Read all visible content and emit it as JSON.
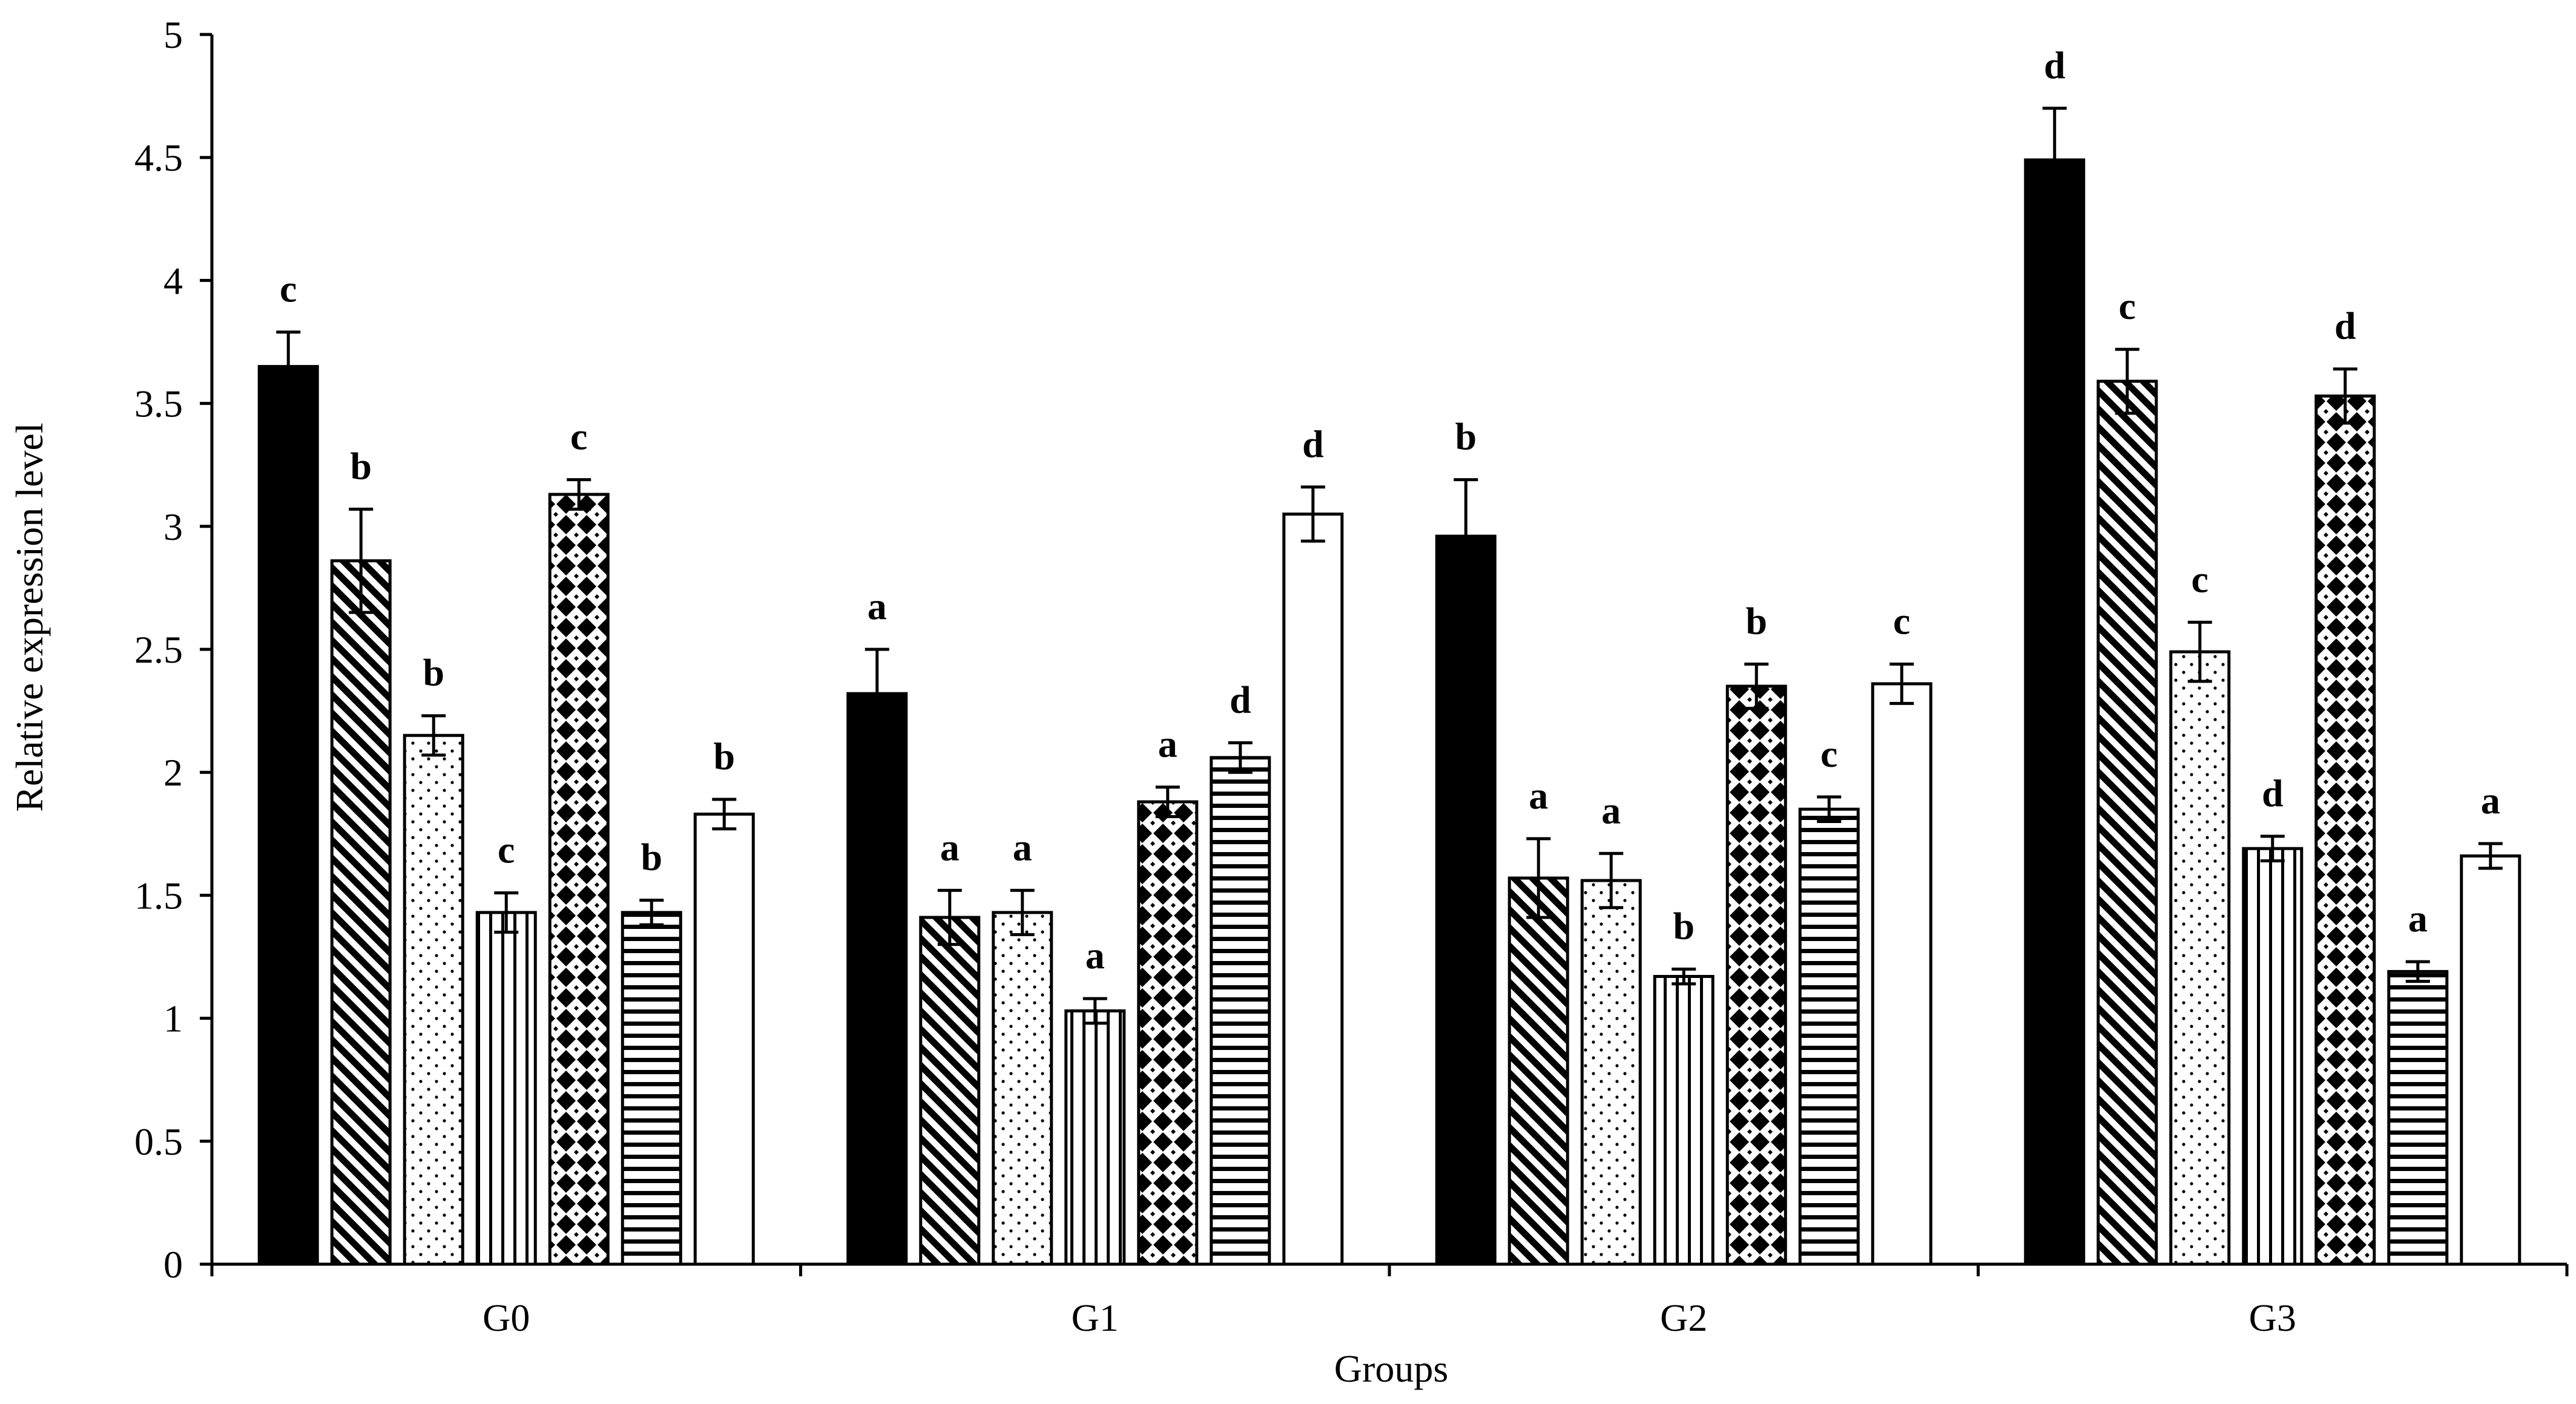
{
  "chart_data": {
    "type": "bar",
    "title": "",
    "xlabel": "Groups",
    "ylabel": "Relative expression level",
    "ylim": [
      0,
      5
    ],
    "yticks": [
      "0",
      "0.5",
      "1",
      "1.5",
      "2",
      "2.5",
      "3",
      "3.5",
      "4",
      "4.5",
      "5"
    ],
    "categories": [
      "G0",
      "G1",
      "G2",
      "G3"
    ],
    "legend": "none",
    "series": [
      {
        "name": "series-1",
        "pattern": "solid",
        "values": [
          3.65,
          2.32,
          2.96,
          4.49
        ],
        "errors": [
          0.14,
          0.18,
          0.23,
          0.21
        ],
        "labels": [
          "c",
          "a",
          "b",
          "d"
        ]
      },
      {
        "name": "series-2",
        "pattern": "diagonal",
        "values": [
          2.86,
          1.41,
          1.57,
          3.59
        ],
        "errors": [
          0.21,
          0.11,
          0.16,
          0.13
        ],
        "labels": [
          "b",
          "a",
          "a",
          "c"
        ]
      },
      {
        "name": "series-3",
        "pattern": "dots",
        "values": [
          2.15,
          1.43,
          1.56,
          2.49
        ],
        "errors": [
          0.08,
          0.09,
          0.11,
          0.12
        ],
        "labels": [
          "b",
          "a",
          "a",
          "c"
        ]
      },
      {
        "name": "series-4",
        "pattern": "vertical",
        "values": [
          1.43,
          1.03,
          1.17,
          1.69
        ],
        "errors": [
          0.08,
          0.05,
          0.03,
          0.05
        ],
        "labels": [
          "c",
          "a",
          "b",
          "d"
        ]
      },
      {
        "name": "series-5",
        "pattern": "diamond",
        "values": [
          3.13,
          1.88,
          2.35,
          3.53
        ],
        "errors": [
          0.06,
          0.06,
          0.09,
          0.11
        ],
        "labels": [
          "c",
          "a",
          "b",
          "d"
        ]
      },
      {
        "name": "series-6",
        "pattern": "horizontal",
        "values": [
          1.43,
          2.06,
          1.85,
          1.19
        ],
        "errors": [
          0.05,
          0.06,
          0.05,
          0.04
        ],
        "labels": [
          "b",
          "d",
          "c",
          "a"
        ]
      },
      {
        "name": "series-7",
        "pattern": "open",
        "values": [
          1.83,
          3.05,
          2.36,
          1.66
        ],
        "errors": [
          0.06,
          0.11,
          0.08,
          0.05
        ],
        "labels": [
          "b",
          "d",
          "c",
          "a"
        ]
      }
    ]
  }
}
